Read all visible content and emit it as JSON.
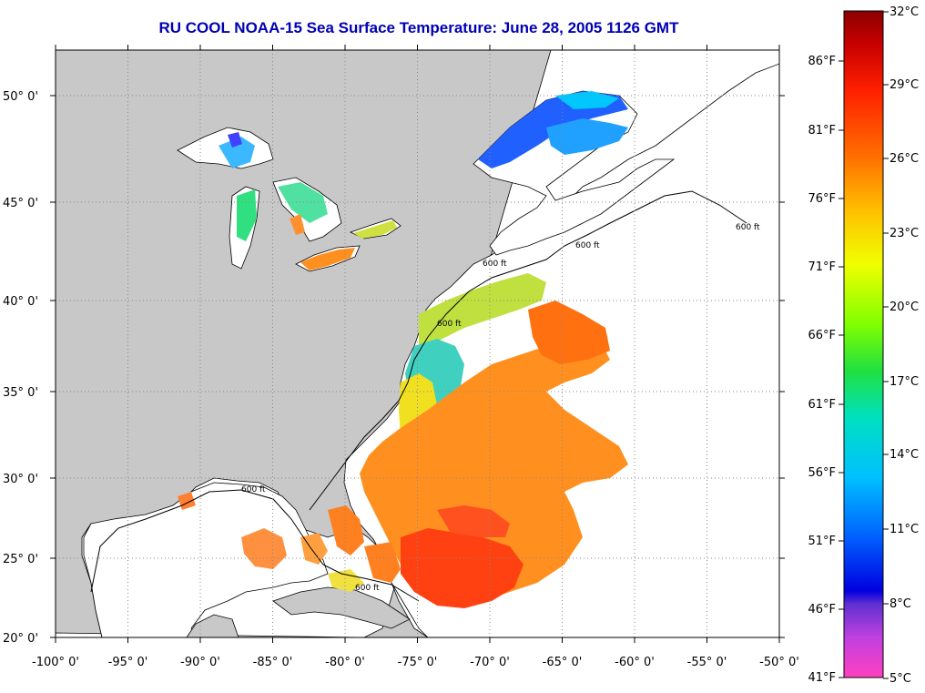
{
  "title": "RU COOL  NOAA-15  Sea Surface Temperature:  June 28, 2005 1126 GMT",
  "colors": {
    "title": "#0000b4",
    "land": "#c8c8c8",
    "ocean": "#ffffff",
    "grid": "#888888",
    "coast": "#000000"
  },
  "axes": {
    "lon_labels": [
      "-100° 0'",
      "-95° 0'",
      "-90° 0'",
      "-85° 0'",
      "-80° 0'",
      "-75° 0'",
      "-70° 0'",
      "-65° 0'",
      "-60° 0'",
      "-55° 0'",
      "-50° 0'"
    ],
    "lat_labels": [
      "20° 0'",
      "25° 0'",
      "30° 0'",
      "35° 0'",
      "40° 0'",
      "45° 0'",
      "50° 0'"
    ]
  },
  "contour_label": "600 ft",
  "colorbar": {
    "celsius_labels": [
      "32°C",
      "29°C",
      "26°C",
      "23°C",
      "20°C",
      "17°C",
      "14°C",
      "11°C",
      "8°C",
      "5°C"
    ],
    "fahrenheit_labels": [
      "86°F",
      "81°F",
      "76°F",
      "71°F",
      "66°F",
      "61°F",
      "56°F",
      "51°F",
      "46°F",
      "41°F"
    ]
  }
}
